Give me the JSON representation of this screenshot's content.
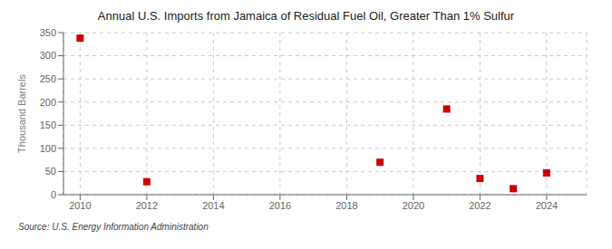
{
  "chart_data": {
    "type": "scatter",
    "title": "Annual U.S. Imports from Jamaica of Residual Fuel Oil, Greater Than 1% Sulfur",
    "ylabel": "Thousand Barrels",
    "annotations": [
      "Source: U.S. Energy Information Administration"
    ],
    "x": [
      2010,
      2012,
      2019,
      2021,
      2022,
      2023,
      2024
    ],
    "values": [
      338,
      28,
      70,
      185,
      35,
      13,
      47
    ],
    "color": "#cc0000",
    "marker": "square",
    "xlim": [
      2009.5,
      2025.2
    ],
    "xticks": [
      2010,
      2012,
      2014,
      2016,
      2018,
      2020,
      2022,
      2024
    ],
    "ylim": [
      0,
      350
    ],
    "yticks": [
      0,
      50,
      100,
      150,
      200,
      250,
      300,
      350
    ],
    "grid": true
  }
}
